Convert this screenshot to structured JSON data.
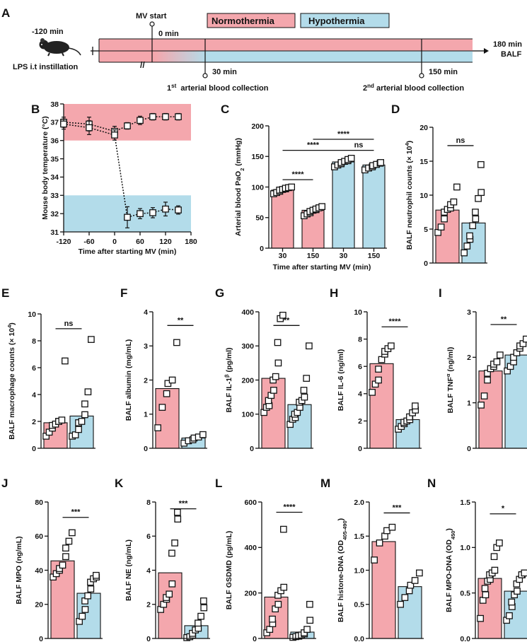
{
  "figure": {
    "colors": {
      "normothermia": "#f4a7ad",
      "hypothermia": "#b3dcea",
      "ink": "#111111"
    }
  },
  "timeline": {
    "panel": "A",
    "legend": [
      "Normothermia",
      "Hypothermia"
    ],
    "mouse_icon": "mouse-icon",
    "mv_start": "MV start",
    "t_minus120": "-120 min",
    "t0": "0 min",
    "t30": "30 min",
    "t150": "150 min",
    "t180": "180 min",
    "balf": "BALF",
    "lps": "LPS i.t instillation",
    "first_collection": [
      "1",
      "st",
      "  arterial blood collection"
    ],
    "second_collection": [
      "2",
      "nd",
      " arterial blood collection"
    ]
  },
  "chart_data": [
    {
      "panel": "B",
      "type": "line",
      "xlabel": "Time after starting MV (min)",
      "ylabel": "Mouse body temperature (°C)",
      "xlim": [
        -120,
        180
      ],
      "ylim": [
        31,
        38
      ],
      "xticks": [
        "-120",
        "-60",
        "0",
        "60",
        "120",
        "180"
      ],
      "yticks": [
        "31",
        "32",
        "33",
        "34",
        "35",
        "36",
        "37",
        "38"
      ],
      "bands": [
        {
          "name": "Normothermia",
          "range": [
            36,
            38
          ]
        },
        {
          "name": "Hypothermia",
          "range": [
            31,
            33
          ]
        }
      ],
      "series": [
        {
          "name": "Normothermia",
          "x": [
            -120,
            -60,
            0,
            30,
            60,
            90,
            120,
            150
          ],
          "y": [
            37.0,
            36.9,
            36.5,
            36.8,
            37.1,
            37.3,
            37.3,
            37.3
          ],
          "err": [
            0.2,
            0.3,
            0.2,
            0.1,
            0.15,
            0.1,
            0.1,
            0.1
          ]
        },
        {
          "name": "Hypothermia",
          "x": [
            -120,
            -60,
            0,
            30,
            60,
            90,
            120,
            150
          ],
          "y": [
            36.9,
            36.7,
            36.3,
            31.8,
            32.0,
            32.05,
            32.25,
            32.2
          ],
          "err": [
            0.2,
            0.3,
            0.2,
            0.5,
            0.2,
            0.2,
            0.3,
            0.15
          ]
        }
      ]
    },
    {
      "panel": "C",
      "type": "bar",
      "xlabel": "Time after starting MV (min)",
      "ylabel_parts": [
        "Arterial blood PaO",
        "2",
        " (mmHg)"
      ],
      "ylim": [
        0,
        200
      ],
      "yticks": [
        "0",
        "50",
        "100",
        "150",
        "200"
      ],
      "categories": [
        "30",
        "150",
        "30",
        "150"
      ],
      "groups": [
        "N",
        "N",
        "H",
        "H"
      ],
      "values": [
        95,
        62,
        141,
        136
      ],
      "points": [
        [
          89,
          91,
          93,
          95,
          96,
          97,
          98,
          99,
          100
        ],
        [
          53,
          56,
          58,
          60,
          62,
          63,
          64,
          66,
          68
        ],
        [
          133,
          136,
          138,
          140,
          142,
          143,
          145,
          147
        ],
        [
          128,
          131,
          133,
          135,
          137,
          139,
          140
        ]
      ],
      "brackets": [
        {
          "from": 0,
          "to": 1,
          "label": "****",
          "y": 112
        },
        {
          "from": 0,
          "to": 2,
          "label": "****",
          "y": 160
        },
        {
          "from": 1,
          "to": 3,
          "label": "****",
          "y": 178
        },
        {
          "from": 2,
          "to": 3,
          "label": "ns",
          "y": 160
        }
      ]
    },
    {
      "panel": "D",
      "type": "bar",
      "ylabel_parts": [
        "BALF neutrophil counts (× 10",
        "4",
        ")"
      ],
      "ylim": [
        0,
        20
      ],
      "yticks": [
        "0",
        "5",
        "10",
        "15",
        "20"
      ],
      "values": [
        7.8,
        5.9
      ],
      "points": [
        [
          4.5,
          5.3,
          6.5,
          7.5,
          7.9,
          8.1,
          8.6,
          9.0,
          11.2
        ],
        [
          1.5,
          2.5,
          3.5,
          4.0,
          5.5,
          6.5,
          7.5,
          9.5,
          10.4,
          14.5
        ]
      ],
      "sig": "ns",
      "sig_y": 17.3
    },
    {
      "panel": "E",
      "type": "bar",
      "ylabel_parts": [
        "BALF macrophage counts (× 10",
        "4",
        ")"
      ],
      "ylim": [
        0,
        10
      ],
      "yticks": [
        "0",
        "2",
        "4",
        "6",
        "8",
        "10"
      ],
      "values": [
        1.9,
        2.4
      ],
      "points": [
        [
          0.9,
          1.2,
          1.5,
          1.7,
          1.8,
          2.0,
          2.0,
          2.1,
          6.5
        ],
        [
          0.9,
          1.0,
          1.4,
          1.9,
          2.0,
          2.5,
          3.3,
          4.2,
          8.1
        ]
      ],
      "sig": "ns",
      "sig_y": 8.9
    },
    {
      "panel": "F",
      "type": "bar",
      "ylabel": "BALF albumin (mg/mL)",
      "ylim": [
        0,
        4
      ],
      "yticks": [
        "0",
        "1",
        "2",
        "3",
        "4"
      ],
      "values": [
        1.75,
        0.3
      ],
      "points": [
        [
          0.6,
          1.2,
          1.6,
          1.9,
          2.0,
          3.1
        ],
        [
          0.15,
          0.22,
          0.25,
          0.3,
          0.33,
          0.4
        ]
      ],
      "sig": "**",
      "sig_y": 3.6
    },
    {
      "panel": "G",
      "type": "bar",
      "ylabel_parts": [
        "BALF IL-1",
        "β",
        " (pg/ml)"
      ],
      "ylim": [
        0,
        400
      ],
      "yticks": [
        "0",
        "100",
        "200",
        "300",
        "400"
      ],
      "values": [
        205,
        128
      ],
      "points": [
        [
          105,
          120,
          125,
          140,
          155,
          170,
          200,
          210,
          250,
          310,
          380,
          390
        ],
        [
          70,
          85,
          90,
          100,
          105,
          120,
          135,
          140,
          150,
          170,
          205,
          300
        ]
      ],
      "sig": "**",
      "sig_y": 360
    },
    {
      "panel": "H",
      "type": "bar",
      "ylabel": "BALF IL-6 (ng/ml)",
      "ylim": [
        0,
        10
      ],
      "yticks": [
        "0",
        "2",
        "4",
        "6",
        "8",
        "10"
      ],
      "values": [
        6.2,
        2.1
      ],
      "points": [
        [
          4.1,
          4.7,
          5.0,
          5.8,
          6.5,
          6.9,
          7.1,
          7.3,
          7.5
        ],
        [
          1.4,
          1.6,
          1.8,
          1.9,
          2.0,
          2.1,
          2.3,
          2.6,
          2.8,
          3.1
        ]
      ],
      "sig": "****",
      "sig_y": 8.9
    },
    {
      "panel": "I",
      "type": "bar",
      "ylabel_parts": [
        "BALF TNF",
        "α",
        " (ng/ml)"
      ],
      "ylim": [
        0,
        3
      ],
      "yticks": [
        "0",
        "1",
        "2",
        "3"
      ],
      "values": [
        1.7,
        2.05
      ],
      "points": [
        [
          0.95,
          1.15,
          1.5,
          1.65,
          1.75,
          1.8,
          1.85,
          1.9,
          2.05
        ],
        [
          1.7,
          1.8,
          1.9,
          2.0,
          2.1,
          2.2,
          2.25,
          2.3,
          2.4
        ]
      ],
      "sig": "**",
      "sig_y": 2.72
    },
    {
      "panel": "J",
      "type": "bar",
      "ylabel": "BALF MPO (ng/mL)",
      "ylim": [
        0,
        80
      ],
      "yticks": [
        "0",
        "20",
        "40",
        "60",
        "80"
      ],
      "values": [
        45.5,
        26.5
      ],
      "points": [
        [
          36,
          38,
          40,
          41,
          43,
          48,
          53,
          57,
          62
        ],
        [
          10,
          13,
          17,
          22,
          25,
          29,
          33,
          35,
          36,
          37
        ]
      ],
      "sig": "***",
      "sig_y": 71
    },
    {
      "panel": "K",
      "type": "bar",
      "ylabel": "BALF NE (ng/mL)",
      "ylim": [
        0,
        8
      ],
      "yticks": [
        "0",
        "2",
        "4",
        "6",
        "8"
      ],
      "values": [
        3.85,
        0.75
      ],
      "points": [
        [
          1.7,
          2.0,
          2.3,
          2.4,
          2.6,
          3.2,
          5.0,
          5.6,
          7.0,
          7.4
        ],
        [
          0.05,
          0.1,
          0.2,
          0.3,
          0.5,
          0.6,
          0.9,
          1.3,
          1.8,
          2.2
        ]
      ],
      "sig": "***",
      "sig_y": 7.6
    },
    {
      "panel": "L",
      "type": "bar",
      "ylabel": "BALF GSDMD (pg/mL)",
      "ylim": [
        0,
        600
      ],
      "yticks": [
        "0",
        "200",
        "400",
        "600"
      ],
      "values": [
        182,
        28
      ],
      "points": [
        [
          25,
          40,
          65,
          85,
          130,
          150,
          190,
          210,
          225,
          480
        ],
        [
          5,
          8,
          10,
          12,
          15,
          20,
          25,
          40,
          80,
          150
        ]
      ],
      "sig": "****",
      "sig_y": 555
    },
    {
      "panel": "M",
      "type": "bar",
      "ylabel_parts": [
        "BALF histone-DNA (OD",
        "405-490",
        ")"
      ],
      "ylim": [
        0,
        2.0
      ],
      "yticks": [
        "0.0",
        "0.5",
        "1.0",
        "1.5",
        "2.0"
      ],
      "values": [
        1.42,
        0.76
      ],
      "points": [
        [
          1.15,
          1.4,
          1.5,
          1.58,
          1.63
        ],
        [
          0.5,
          0.6,
          0.7,
          0.78,
          0.85,
          0.96
        ]
      ],
      "sig": "***",
      "sig_y": 1.84
    },
    {
      "panel": "N",
      "type": "bar",
      "ylabel_parts": [
        "BALF MPO-DNA (OD",
        "450",
        ")"
      ],
      "ylim": [
        0,
        1.5
      ],
      "yticks": [
        "0.0",
        "0.5",
        "1.0",
        "1.5"
      ],
      "values": [
        0.66,
        0.52
      ],
      "points": [
        [
          0.22,
          0.42,
          0.48,
          0.55,
          0.63,
          0.65,
          0.7,
          0.72,
          0.75,
          0.9,
          1.0,
          1.05
        ],
        [
          0.2,
          0.25,
          0.35,
          0.4,
          0.48,
          0.52,
          0.6,
          0.65,
          0.7,
          0.7,
          0.72
        ]
      ],
      "sig": "*",
      "sig_y": 1.37
    }
  ]
}
